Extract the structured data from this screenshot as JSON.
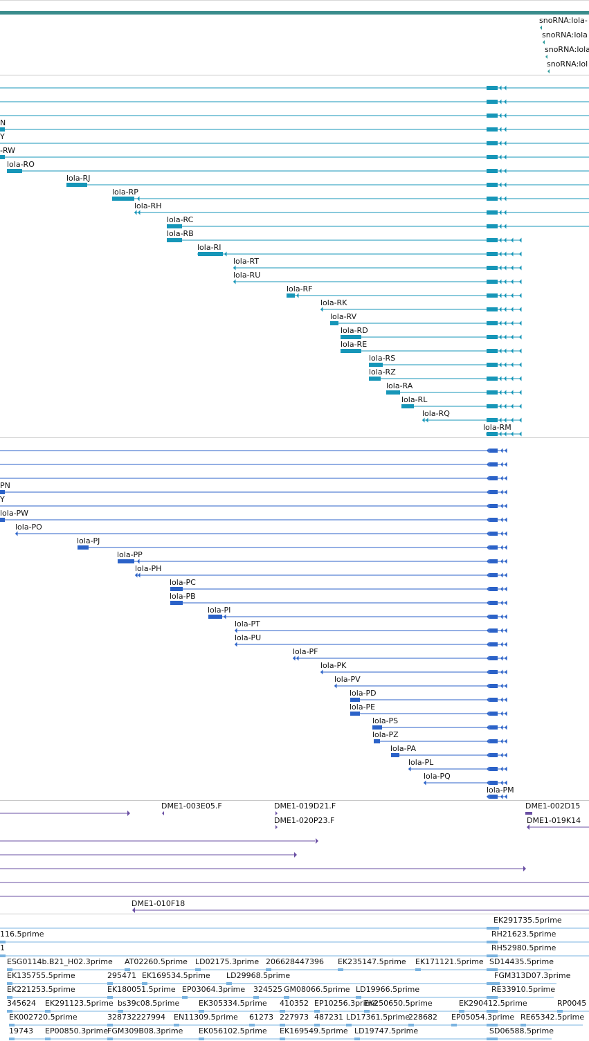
{
  "colors": {
    "top_bar": "#3a8c8c",
    "snorna": "#2e9c9c",
    "rna": "#1696b8",
    "protein": "#2b62c8",
    "bac": "#6a4fa3",
    "est": "#7ab3e0",
    "separator": "#c8c8c8"
  },
  "snorna_track": {
    "labels": [
      "snoRNA:lola-",
      "snoRNA:lola",
      "snoRNA:lola",
      "snoRNA:lol"
    ]
  },
  "rna_track": {
    "labels": [
      "N",
      "Y",
      "-RW",
      "lola-RO",
      "lola-RJ",
      "lola-RP",
      "lola-RH",
      "lola-RC",
      "lola-RB",
      "lola-RI",
      "lola-RT",
      "lola-RU",
      "lola-RF",
      "lola-RK",
      "lola-RV",
      "lola-RD",
      "lola-RE",
      "lola-RS",
      "lola-RZ",
      "lola-RA",
      "lola-RL",
      "lola-RQ",
      "lola-RM"
    ]
  },
  "protein_track": {
    "labels": [
      "PN",
      "Y",
      "lola-PW",
      "lola-PO",
      "lola-PJ",
      "lola-PP",
      "lola-PH",
      "lola-PC",
      "lola-PB",
      "lola-PI",
      "lola-PT",
      "lola-PU",
      "lola-PF",
      "lola-PK",
      "lola-PV",
      "lola-PD",
      "lola-PE",
      "lola-PS",
      "lola-PZ",
      "lola-PA",
      "lola-PL",
      "lola-PQ",
      "lola-PM"
    ]
  },
  "bac_track": {
    "labels": [
      "DME1-003E05.F",
      "DME1-019D21.F",
      "DME1-020P23.F",
      "DME1-002D15",
      "DME1-019K14",
      "DME1-010F18"
    ]
  },
  "est_track": {
    "rows": [
      [
        "EK291735.5prime"
      ],
      [
        "116.5prime",
        "RH21623.5prime"
      ],
      [
        "1",
        "RH52980.5prime"
      ],
      [
        "ESG0114b.B21_H02.3prime",
        "AT02260.5prime",
        "LD02175.3prime",
        "206628447396",
        "EK235147.5prime",
        "EK171121.5prime",
        "SD14435.5prime"
      ],
      [
        "EK135755.5prime",
        "295471",
        "EK169534.5prime",
        "LD29968.5prime",
        "FGM313D07.3prime"
      ],
      [
        "EK221253.5prime",
        "EK180051.5prime",
        "EP03064.3prime",
        "324525",
        "GM08066.5prime",
        "LD19966.5prime",
        "RE33910.5prime"
      ],
      [
        "345624",
        "EK291123.5prime",
        "bs39c08.5prime",
        "EK305334.5prime",
        "410352",
        "EP10256.3prime",
        "EK250650.5prime",
        "EK290412.5prime",
        "RP0045"
      ],
      [
        "EK002720.5prime",
        "328732227994",
        "EN11309.5prime",
        "61273",
        "227973",
        "487231",
        "LD17361.5prime",
        "228682",
        "EP05054.3prime",
        "RE65342.5prime"
      ],
      [
        "19743",
        "EP00850.3prime",
        "FGM309B08.3prime",
        "EK056102.5prime",
        "EK169549.5prime",
        "LD19747.5prime",
        "SD06588.5prime"
      ]
    ]
  }
}
